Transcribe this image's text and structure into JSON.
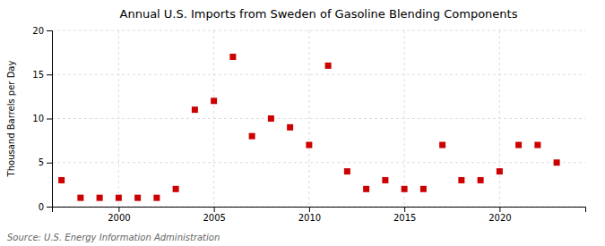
{
  "chart_data": {
    "type": "scatter",
    "title": "Annual U.S. Imports from Sweden of Gasoline Blending Components",
    "ylabel": "Thousand Barrels per Day",
    "source": "Source: U.S. Energy Information Administration",
    "x": [
      1997,
      1998,
      1999,
      2000,
      2001,
      2002,
      2003,
      2004,
      2005,
      2006,
      2007,
      2008,
      2009,
      2010,
      2011,
      2012,
      2013,
      2014,
      2015,
      2016,
      2017,
      2018,
      2019,
      2020,
      2021,
      2022,
      2023
    ],
    "values": [
      3,
      1,
      1,
      1,
      1,
      1,
      2,
      11,
      12,
      17,
      8,
      10,
      9,
      7,
      16,
      4,
      2,
      3,
      2,
      2,
      7,
      3,
      3,
      4,
      7,
      7,
      5
    ],
    "color": "#cc0000",
    "marker": "square",
    "xlim": [
      1996.5,
      2024.5
    ],
    "xticks": [
      2000,
      2005,
      2010,
      2015,
      2020
    ],
    "ylim": [
      0,
      20
    ],
    "yticks": [
      0,
      5,
      10,
      15,
      20
    ],
    "grid": true
  }
}
